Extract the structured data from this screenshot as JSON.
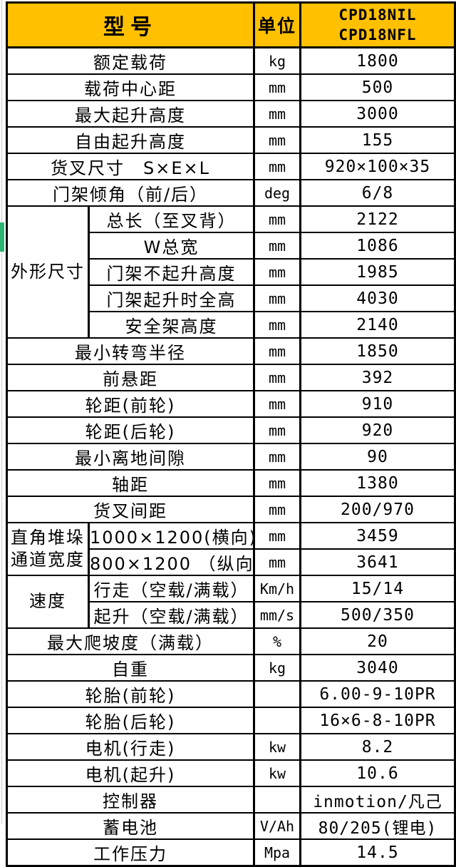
{
  "header": {
    "model_label": "型号",
    "unit_label": "单位",
    "model_names": "CPD18NIL\nCPD18NFL"
  },
  "rows": [
    {
      "label": "额定载荷",
      "unit": "kg",
      "value": "1800"
    },
    {
      "label": "载荷中心距",
      "unit": "mm",
      "value": "500"
    },
    {
      "label": "最大起升高度",
      "unit": "mm",
      "value": "3000"
    },
    {
      "label": "自由起升高度",
      "unit": "mm",
      "value": "155"
    },
    {
      "label": "货叉尺寸　S×E×L",
      "unit": "mm",
      "value": "920×100×35"
    },
    {
      "label": "门架倾角（前/后）",
      "unit": "deg",
      "value": "6/8"
    },
    {
      "group": "外形尺寸",
      "group_span": 5,
      "label": "总长（至叉背）",
      "unit": "mm",
      "value": "2122"
    },
    {
      "in_group": true,
      "label": "W总宽",
      "unit": "mm",
      "value": "1086"
    },
    {
      "in_group": true,
      "label": "门架不起升高度",
      "unit": "mm",
      "value": "1985"
    },
    {
      "in_group": true,
      "label": "门架起升时全高",
      "unit": "mm",
      "value": "4030"
    },
    {
      "in_group": true,
      "label": "安全架高度",
      "unit": "mm",
      "value": "2140"
    },
    {
      "label": "最小转弯半径",
      "unit": "mm",
      "value": "1850"
    },
    {
      "label": "前悬距",
      "unit": "mm",
      "value": "392"
    },
    {
      "label": "轮距(前轮)",
      "unit": "mm",
      "value": "910"
    },
    {
      "label": "轮距(后轮)",
      "unit": "mm",
      "value": "920"
    },
    {
      "label": "最小离地间隙",
      "unit": "mm",
      "value": "90"
    },
    {
      "label": "轴距",
      "unit": "mm",
      "value": "1380"
    },
    {
      "label": "货叉间距",
      "unit": "mm",
      "value": "200/970"
    },
    {
      "group": "直角堆垛\n通道宽度",
      "group_span": 2,
      "label": "1000×1200(横向)",
      "unit": "mm",
      "value": "3459"
    },
    {
      "in_group": true,
      "label": "800×1200 （纵向）",
      "unit": "mm",
      "value": "3641"
    },
    {
      "group": "速度",
      "group_span": 2,
      "label": "行走（空载/满载）",
      "unit": "Km/h",
      "value": "15/14"
    },
    {
      "in_group": true,
      "label": "起升（空载/满载）",
      "unit": "mm/s",
      "value": "500/350"
    },
    {
      "label": "最大爬坡度（满载）",
      "unit": "%",
      "value": "20"
    },
    {
      "label": "自重",
      "unit": "kg",
      "value": "3040"
    },
    {
      "label": "轮胎(前轮)",
      "unit": "",
      "value": "6.00-9-10PR"
    },
    {
      "label": "轮胎(后轮)",
      "unit": "",
      "value": "16×6-8-10PR"
    },
    {
      "label": "电机(行走)",
      "unit": "kw",
      "value": "8.2"
    },
    {
      "label": "电机(起升)",
      "unit": "kw",
      "value": "10.6"
    },
    {
      "label": "控制器",
      "unit": "",
      "value": "inmotion/凡己"
    },
    {
      "label": "蓄电池",
      "unit": "V/Ah",
      "value": "80/205(锂电)"
    },
    {
      "label": "工作压力",
      "unit": "Mpa",
      "value": "14.5"
    }
  ],
  "colors": {
    "header_bg": "#FFC000",
    "border": "#000000",
    "accent_green": "#2BB573",
    "gutter_line": "#C3CCD9"
  }
}
